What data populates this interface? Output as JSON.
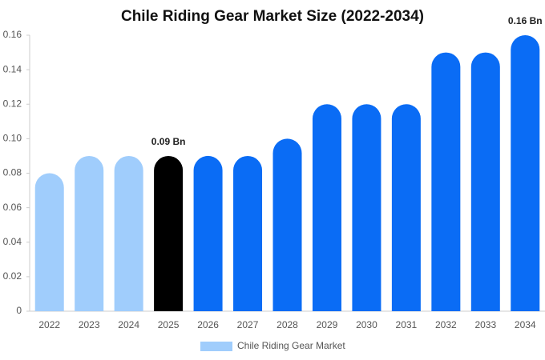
{
  "chart_data": {
    "type": "bar",
    "title": "Chile Riding Gear Market Size (2022-2034)",
    "categories": [
      "2022",
      "2023",
      "2024",
      "2025",
      "2026",
      "2027",
      "2028",
      "2029",
      "2030",
      "2031",
      "2032",
      "2033",
      "2034"
    ],
    "series": [
      {
        "name": "Chile Riding Gear Market",
        "color": "#a0cdfc",
        "values": [
          0.08,
          0.09,
          0.09,
          0.09,
          0.09,
          0.09,
          0.1,
          0.12,
          0.12,
          0.12,
          0.15,
          0.15,
          0.16
        ],
        "value_labels": [
          null,
          null,
          null,
          "0.09 Bn",
          null,
          null,
          null,
          null,
          null,
          null,
          null,
          null,
          "0.16 Bn"
        ],
        "colors": [
          "#a0cdfc",
          "#a0cdfc",
          "#a0cdfc",
          "#000000",
          "#0a6cf5",
          "#0a6cf5",
          "#0a6cf5",
          "#0a6cf5",
          "#0a6cf5",
          "#0a6cf5",
          "#0a6cf5",
          "#0a6cf5",
          "#0a6cf5"
        ]
      }
    ],
    "ylim": [
      0,
      0.16
    ],
    "yticks": [
      0,
      0.02,
      0.04,
      0.06,
      0.08,
      {
        "value": 0.1,
        "label": "0.10"
      },
      0.12,
      0.14,
      0.16
    ]
  }
}
